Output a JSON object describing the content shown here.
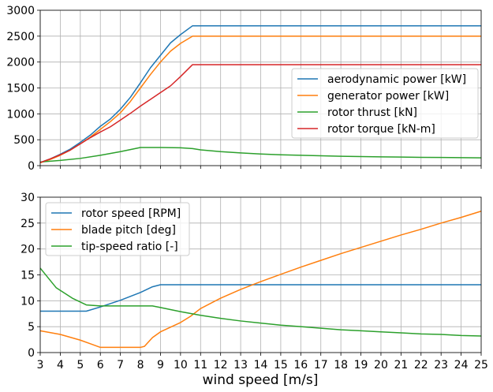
{
  "chart_data": [
    {
      "type": "line",
      "xlabel": "",
      "ylabel": "",
      "xlim": [
        3,
        25
      ],
      "ylim": [
        0,
        3000
      ],
      "x_ticks": [
        3,
        4,
        5,
        6,
        7,
        8,
        9,
        10,
        11,
        12,
        13,
        14,
        15,
        16,
        17,
        18,
        19,
        20,
        21,
        22,
        23,
        24,
        25
      ],
      "y_ticks": [
        0,
        500,
        1000,
        1500,
        2000,
        2500,
        3000
      ],
      "x_tick_labels_visible": false,
      "grid": true,
      "legend_placement": "center-right",
      "series": [
        {
          "name": "aerodynamic power [kW]",
          "color": "#1f77b4",
          "x": [
            3,
            3.5,
            4,
            4.5,
            5,
            5.5,
            6,
            6.5,
            7,
            7.5,
            8,
            8.5,
            9,
            9.5,
            10,
            10.6,
            11,
            12,
            14,
            16,
            18,
            20,
            22,
            25
          ],
          "y": [
            60,
            130,
            220,
            320,
            450,
            590,
            760,
            900,
            1090,
            1320,
            1600,
            1890,
            2130,
            2370,
            2530,
            2700,
            2700,
            2700,
            2700,
            2700,
            2700,
            2700,
            2700,
            2700
          ]
        },
        {
          "name": "generator power [kW]",
          "color": "#ff7f0e",
          "x": [
            3,
            3.5,
            4,
            4.5,
            5,
            5.5,
            6,
            6.5,
            7,
            7.5,
            8,
            8.5,
            9,
            9.5,
            10,
            10.6,
            11,
            12,
            14,
            16,
            18,
            20,
            22,
            25
          ],
          "y": [
            55,
            120,
            200,
            300,
            420,
            550,
            700,
            850,
            1020,
            1240,
            1500,
            1760,
            2000,
            2210,
            2360,
            2500,
            2500,
            2500,
            2500,
            2500,
            2500,
            2500,
            2500,
            2500
          ]
        },
        {
          "name": "rotor thrust [kN]",
          "color": "#2ca02c",
          "x": [
            3,
            4,
            5,
            6,
            7,
            8,
            8.5,
            9,
            10,
            10.6,
            11,
            12,
            13,
            14,
            15,
            16,
            17,
            18,
            19,
            20,
            21,
            22,
            23,
            24,
            25
          ],
          "y": [
            70,
            100,
            140,
            200,
            270,
            350,
            350,
            350,
            345,
            330,
            305,
            270,
            245,
            225,
            210,
            200,
            190,
            180,
            175,
            170,
            165,
            160,
            158,
            155,
            150
          ]
        },
        {
          "name": "rotor torque [kN-m]",
          "color": "#d62728",
          "x": [
            3,
            3.5,
            4,
            4.5,
            5,
            5.5,
            6,
            6.5,
            7,
            7.5,
            8,
            8.5,
            9,
            9.5,
            10,
            10.6,
            11,
            12,
            14,
            16,
            18,
            20,
            22,
            25
          ],
          "y": [
            60,
            130,
            210,
            300,
            420,
            540,
            650,
            750,
            880,
            1010,
            1150,
            1280,
            1410,
            1540,
            1720,
            1950,
            1950,
            1950,
            1950,
            1950,
            1950,
            1950,
            1950,
            1950
          ]
        }
      ]
    },
    {
      "type": "line",
      "xlabel": "wind speed [m/s]",
      "ylabel": "",
      "xlim": [
        3,
        25
      ],
      "ylim": [
        0,
        30
      ],
      "x_ticks": [
        3,
        4,
        5,
        6,
        7,
        8,
        9,
        10,
        11,
        12,
        13,
        14,
        15,
        16,
        17,
        18,
        19,
        20,
        21,
        22,
        23,
        24,
        25
      ],
      "x_tick_labels": [
        "3",
        "4",
        "5",
        "6",
        "7",
        "8",
        "9",
        "10",
        "11",
        "12",
        "13",
        "14",
        "15",
        "16",
        "17",
        "18",
        "19",
        "20",
        "21",
        "22",
        "23",
        "24",
        "25"
      ],
      "y_ticks": [
        0,
        5,
        10,
        15,
        20,
        25,
        30
      ],
      "grid": true,
      "legend_placement": "upper-left",
      "series": [
        {
          "name": "rotor speed [RPM]",
          "color": "#1f77b4",
          "x": [
            3,
            4,
            5,
            5.3,
            6,
            7,
            8,
            8.6,
            9,
            9.5,
            10,
            11,
            12,
            14,
            16,
            18,
            20,
            22,
            25
          ],
          "y": [
            8,
            8,
            8,
            8,
            8.8,
            10.1,
            11.6,
            12.7,
            13.1,
            13.1,
            13.1,
            13.1,
            13.1,
            13.1,
            13.1,
            13.1,
            13.1,
            13.1,
            13.1
          ]
        },
        {
          "name": "blade pitch [deg]",
          "color": "#ff7f0e",
          "x": [
            3,
            4,
            5,
            5.5,
            6,
            7,
            8,
            8.2,
            8.6,
            9,
            9.5,
            10,
            10.5,
            11,
            12,
            13,
            14,
            15,
            16,
            17,
            18,
            19,
            20,
            21,
            22,
            23,
            24,
            25
          ],
          "y": [
            4.2,
            3.5,
            2.4,
            1.7,
            1.0,
            1.0,
            1.0,
            1.2,
            2.9,
            4.0,
            4.9,
            5.8,
            7.0,
            8.5,
            10.5,
            12.2,
            13.7,
            15.1,
            16.5,
            17.8,
            19.1,
            20.3,
            21.5,
            22.7,
            23.8,
            25.0,
            26.1,
            27.3
          ]
        },
        {
          "name": "tip-speed ratio [-]",
          "color": "#2ca02c",
          "x": [
            3,
            3.8,
            4.6,
            5.3,
            6,
            7,
            8,
            8.6,
            9,
            10,
            11,
            12,
            13,
            14,
            15,
            16,
            17,
            18,
            19,
            20,
            21,
            22,
            23,
            24,
            25
          ],
          "y": [
            16.3,
            12.5,
            10.5,
            9.2,
            9.0,
            9.0,
            9.0,
            9.0,
            8.7,
            7.9,
            7.2,
            6.6,
            6.1,
            5.7,
            5.3,
            5.0,
            4.7,
            4.4,
            4.2,
            4.0,
            3.8,
            3.6,
            3.5,
            3.3,
            3.2
          ]
        }
      ]
    }
  ]
}
